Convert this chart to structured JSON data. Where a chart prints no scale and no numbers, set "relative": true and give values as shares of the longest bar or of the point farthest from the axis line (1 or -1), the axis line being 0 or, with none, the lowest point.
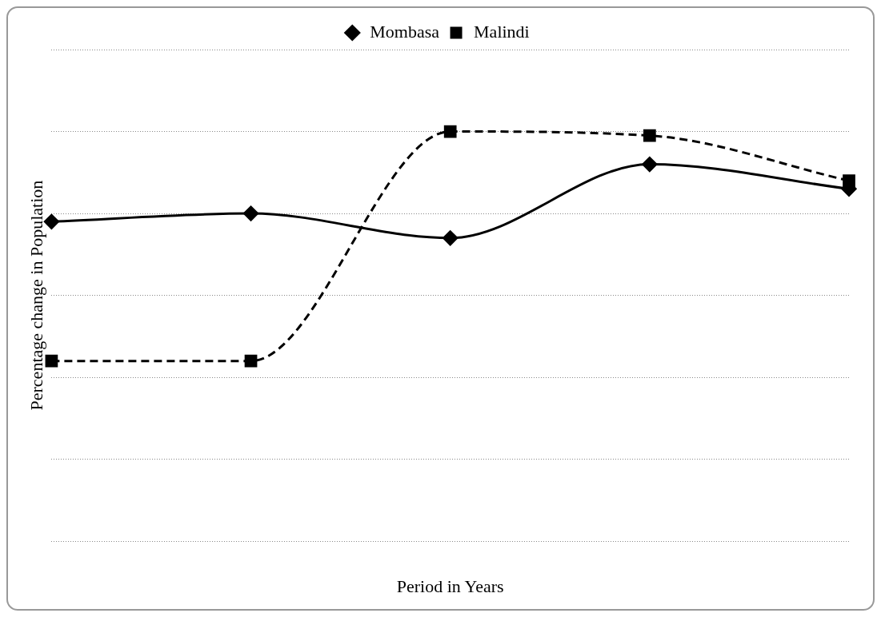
{
  "chart_data": {
    "type": "line",
    "relative": true,
    "xlabel": "Period in Years",
    "ylabel": "Percentage change in Population",
    "categories": [
      null,
      null,
      null,
      null,
      null
    ],
    "series": [
      {
        "name": "Mombasa",
        "color": "#000000",
        "marker": "diamond",
        "line_style": "solid",
        "values": [
          0.78,
          0.8,
          0.74,
          0.92,
          0.86
        ]
      },
      {
        "name": "Malindi",
        "color": "#000000",
        "marker": "square",
        "line_style": "dashed",
        "values": [
          0.44,
          0.44,
          1,
          0.99,
          0.88
        ]
      }
    ],
    "grid": "y",
    "legend": "top"
  }
}
